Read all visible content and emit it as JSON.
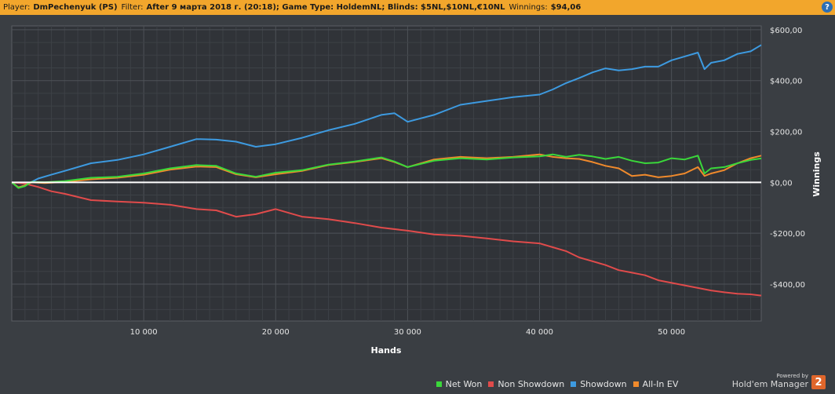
{
  "header": {
    "player_label": "Player:",
    "player_value": "DmPechenyuk (PS)",
    "filter_label": "Filter:",
    "filter_value": "After 9 марта 2018 г. (20:18); Game Type: HoldemNL; Blinds: $5NL,$10NL,€10NL",
    "winnings_label": "Winnings:",
    "winnings_value": "$94,06",
    "help_label": "?"
  },
  "branding": {
    "powered_by": "Powered by",
    "product": "Hold'em Manager",
    "badge": "2"
  },
  "colors": {
    "net_won": "#3ad83a",
    "non_showdown": "#e04b4b",
    "showdown": "#3d9ae0",
    "all_in_ev": "#f08a2c",
    "zero_line": "#ffffff"
  },
  "chart_data": {
    "type": "line",
    "xlabel": "Hands",
    "ylabel": "Winnings",
    "xlim": [
      0,
      56800
    ],
    "ylim": [
      -545,
      615
    ],
    "x_ticks": [
      10000,
      20000,
      30000,
      40000,
      50000
    ],
    "x_tick_labels": [
      "10 000",
      "20 000",
      "30 000",
      "40 000",
      "50 000"
    ],
    "y_ticks": [
      600,
      400,
      200,
      0,
      -200,
      -400
    ],
    "y_tick_labels": [
      "$600,00",
      "$400,00",
      "$200,00",
      "$0,00",
      "-$200,00",
      "-$400,00"
    ],
    "grid": true,
    "legend_position": "bottom",
    "series": [
      {
        "name": "Net Won",
        "x": [
          0,
          500,
          1000,
          1500,
          2500,
          4000,
          6000,
          8000,
          10000,
          12000,
          14000,
          15500,
          17000,
          18500,
          20000,
          22000,
          24000,
          26000,
          28000,
          29000,
          30000,
          32000,
          34000,
          36000,
          38000,
          40000,
          41000,
          42000,
          43000,
          44000,
          45000,
          46000,
          47000,
          48000,
          49000,
          50000,
          51000,
          52000,
          52500,
          53000,
          54000,
          55000,
          56000,
          56800
        ],
        "y": [
          0,
          -22,
          -15,
          2,
          0,
          5,
          18,
          22,
          35,
          55,
          68,
          65,
          35,
          22,
          38,
          48,
          70,
          82,
          98,
          82,
          60,
          85,
          95,
          90,
          98,
          102,
          110,
          100,
          108,
          102,
          92,
          100,
          85,
          75,
          78,
          95,
          90,
          105,
          35,
          55,
          60,
          75,
          88,
          94
        ]
      },
      {
        "name": "Non Showdown",
        "x": [
          0,
          1000,
          2000,
          3000,
          4000,
          6000,
          8000,
          10000,
          12000,
          14000,
          15500,
          17000,
          18500,
          20000,
          22000,
          24000,
          26000,
          28000,
          30000,
          32000,
          34000,
          36000,
          38000,
          40000,
          41000,
          42000,
          43000,
          44000,
          45000,
          46000,
          47000,
          48000,
          49000,
          50000,
          51000,
          52000,
          53000,
          54000,
          55000,
          56000,
          56800
        ],
        "y": [
          0,
          -5,
          -18,
          -35,
          -45,
          -70,
          -75,
          -80,
          -88,
          -105,
          -110,
          -135,
          -125,
          -105,
          -135,
          -145,
          -160,
          -178,
          -190,
          -205,
          -210,
          -220,
          -232,
          -240,
          -255,
          -270,
          -295,
          -310,
          -325,
          -345,
          -355,
          -365,
          -385,
          -395,
          -405,
          -415,
          -425,
          -432,
          -438,
          -440,
          -445
        ]
      },
      {
        "name": "Showdown",
        "x": [
          0,
          500,
          1000,
          2000,
          3000,
          4000,
          6000,
          8000,
          10000,
          12000,
          14000,
          15500,
          17000,
          18500,
          20000,
          22000,
          24000,
          26000,
          28000,
          29000,
          30000,
          32000,
          34000,
          36000,
          38000,
          40000,
          41000,
          42000,
          43000,
          44000,
          45000,
          46000,
          47000,
          48000,
          49000,
          50000,
          51000,
          52000,
          52500,
          53000,
          54000,
          55000,
          56000,
          56800
        ],
        "y": [
          0,
          -20,
          -12,
          15,
          30,
          45,
          75,
          88,
          110,
          140,
          170,
          168,
          160,
          140,
          150,
          175,
          205,
          230,
          265,
          272,
          238,
          265,
          305,
          320,
          335,
          345,
          365,
          390,
          410,
          432,
          448,
          440,
          445,
          455,
          455,
          480,
          495,
          510,
          445,
          470,
          480,
          505,
          515,
          540
        ]
      },
      {
        "name": "All-In EV",
        "x": [
          0,
          500,
          1000,
          1500,
          2500,
          4000,
          6000,
          8000,
          10000,
          12000,
          14000,
          15500,
          17000,
          18500,
          20000,
          22000,
          24000,
          26000,
          28000,
          29000,
          30000,
          32000,
          34000,
          36000,
          38000,
          40000,
          41000,
          42000,
          43000,
          44000,
          45000,
          46000,
          47000,
          48000,
          49000,
          50000,
          51000,
          52000,
          52500,
          53000,
          54000,
          55000,
          56000,
          56800
        ],
        "y": [
          0,
          -20,
          -12,
          0,
          -3,
          2,
          12,
          18,
          30,
          50,
          62,
          60,
          32,
          20,
          32,
          45,
          68,
          80,
          95,
          80,
          60,
          90,
          100,
          95,
          100,
          110,
          100,
          95,
          92,
          80,
          65,
          55,
          25,
          30,
          20,
          25,
          35,
          60,
          25,
          35,
          48,
          75,
          95,
          105
        ]
      }
    ]
  }
}
